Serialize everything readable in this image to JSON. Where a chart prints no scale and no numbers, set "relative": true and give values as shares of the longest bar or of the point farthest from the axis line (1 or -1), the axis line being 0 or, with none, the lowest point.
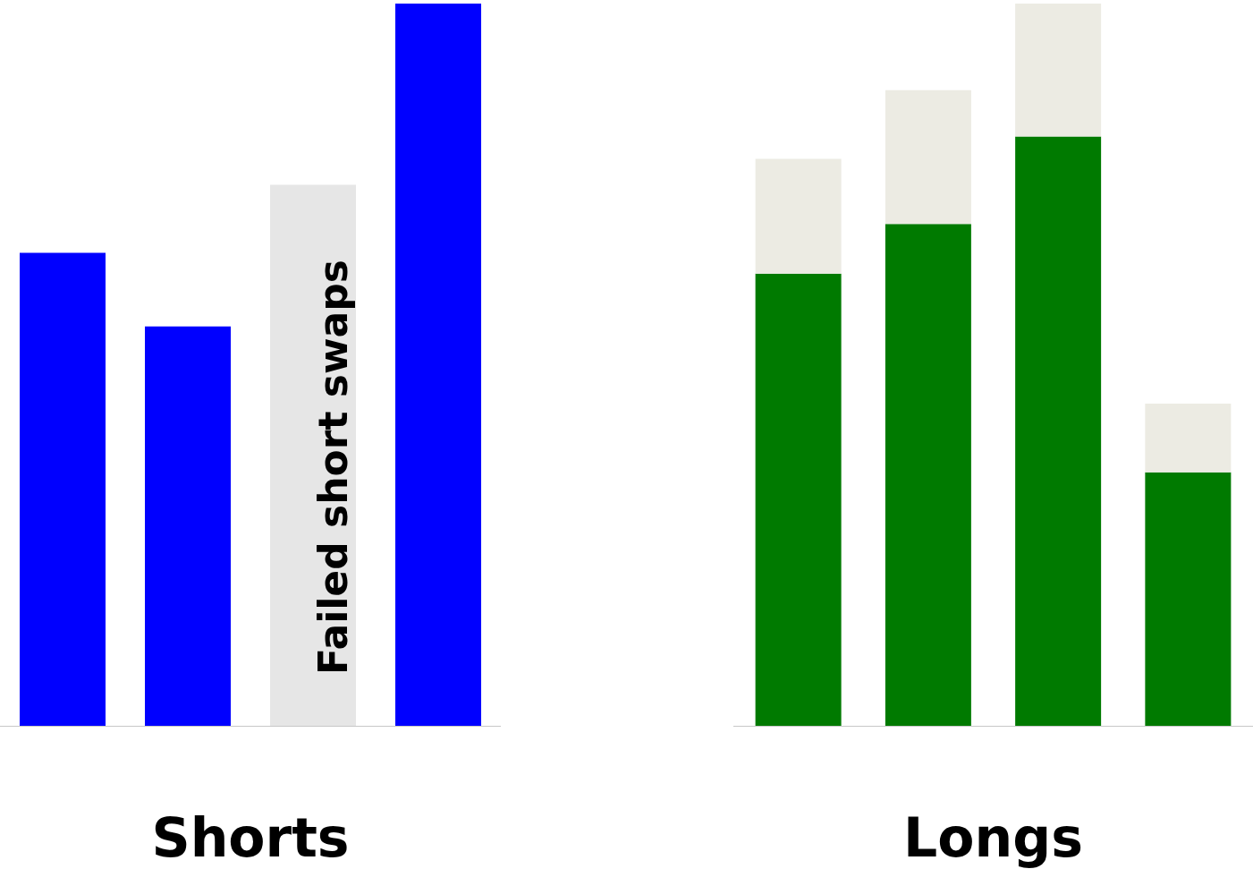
{
  "chart_data": [
    {
      "type": "bar",
      "xlabel": "Shorts",
      "categories": [
        null,
        null,
        null,
        null
      ],
      "relative": true,
      "values": [
        0.655,
        0.553,
        0.749,
        1
      ],
      "colors": [
        "#0000ff",
        "#0000ff",
        "#e6e6e6",
        "#0000ff"
      ],
      "annotations": [
        "Failed short swaps"
      ]
    },
    {
      "type": "bar",
      "xlabel": "Longs",
      "categories": [
        null,
        null,
        null,
        null
      ],
      "stacked": true,
      "relative": true,
      "series": [
        {
          "color": "#007a00",
          "values": [
            0.626,
            0.695,
            0.816,
            0.351
          ]
        },
        {
          "color": "#ecebe3",
          "values": [
            0.159,
            0.185,
            0.184,
            0.095
          ]
        }
      ]
    }
  ]
}
